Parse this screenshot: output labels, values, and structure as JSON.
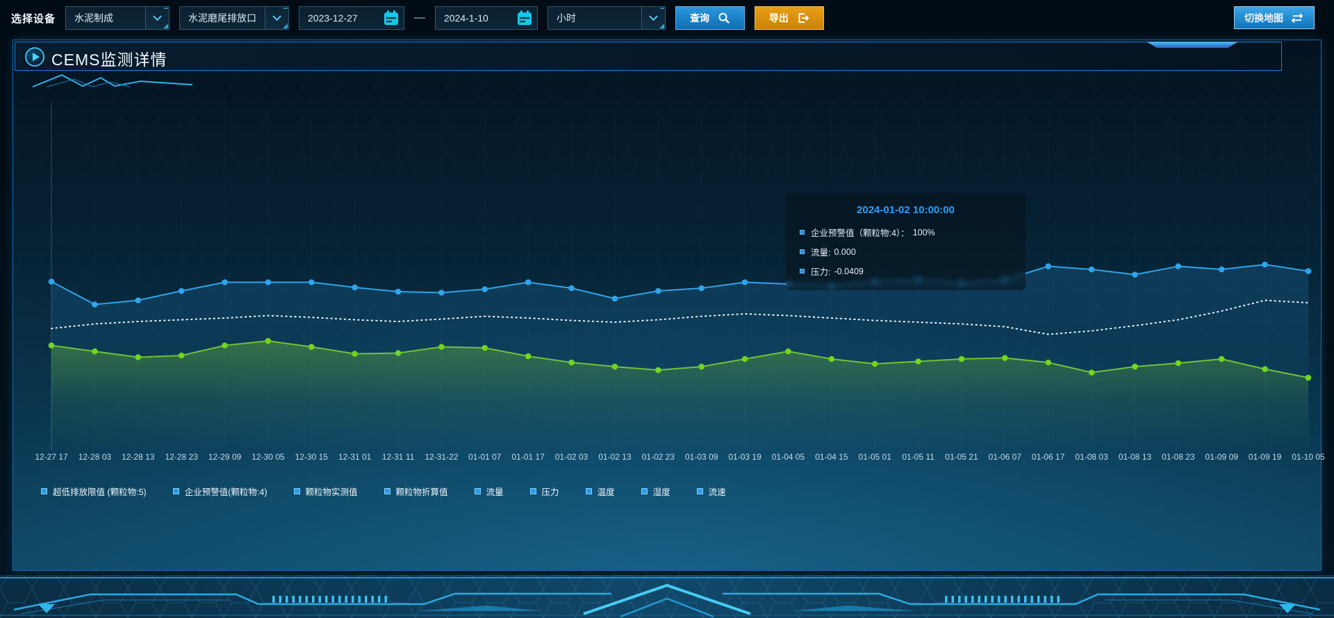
{
  "toolbar": {
    "device_label": "选择设备",
    "select_line": "水泥制成",
    "select_outlet": "水泥磨尾排放口",
    "date_start": "2023-12-27",
    "date_separator": "—",
    "date_end": "2024-1-10",
    "select_interval": "小时",
    "query_label": "查询",
    "export_label": "导出",
    "switch_map_label": "切换地图"
  },
  "panel": {
    "title": "CEMS监测详情"
  },
  "tooltip": {
    "title": "2024-01-02 10:00:00",
    "items": [
      {
        "label": "企业预警值（颗粒物:4）：",
        "value": "100%"
      },
      {
        "label": "流量:",
        "value": "0.000"
      },
      {
        "label": "压力:",
        "value": "-0.0409"
      }
    ]
  },
  "colors": {
    "accent_blue": "#2ea5ec",
    "accent_green": "#6fc436",
    "marker_green": "#72d61e",
    "dotted_white": "#e8f2f8",
    "legend_marker": "#2e9be2",
    "export_orange": "#e8a016",
    "calendar_cyan": "#14c8e9"
  },
  "chart_data": {
    "type": "line",
    "title": "",
    "xlabel": "",
    "ylabel": "",
    "y_axis_visible": false,
    "value_units": "percent of plot height (no y-axis shown in chart)",
    "ylim": [
      0,
      100
    ],
    "grid": "dotted",
    "legend_position": "bottom",
    "x": [
      "12-27 17",
      "12-28 03",
      "12-28 13",
      "12-28 23",
      "12-29 09",
      "12-30 05",
      "12-30 15",
      "12-31 01",
      "12-31 11",
      "12-31-22",
      "01-01 07",
      "01-01 17",
      "01-02 03",
      "01-02 13",
      "01-02 23",
      "01-03 09",
      "01-03 19",
      "01-04 05",
      "01-04 15",
      "01-05 01",
      "01-05 11",
      "01-05 21",
      "01-06 07",
      "01-06 17",
      "01-08 03",
      "01-08 13",
      "01-08 23",
      "01-09 09",
      "01-09 19",
      "01-10 05"
    ],
    "series": [
      {
        "name": "流量",
        "color": "#2ea5ec",
        "marker_color": "#2ea5ec",
        "markers": true,
        "dashed": false,
        "area": "blue",
        "values": [
          48.5,
          41.9,
          43.1,
          45.8,
          48.3,
          48.3,
          48.3,
          46.8,
          45.6,
          45.3,
          46.3,
          48.3,
          46.6,
          43.6,
          45.8,
          46.6,
          48.3,
          47.8,
          47.3,
          48.5,
          49,
          48,
          49,
          52.9,
          52,
          50.5,
          52.9,
          52,
          53.4,
          51.5
        ]
      },
      {
        "name": "企业预警值(颗粒物:4)",
        "color": "#e8f2f8",
        "marker_color": "#e8f2f8",
        "markers": false,
        "dashed": true,
        "area": null,
        "values": [
          35,
          36.3,
          37,
          37.5,
          38,
          38.7,
          38.2,
          37.5,
          37,
          37.7,
          38.5,
          38,
          37.3,
          36.8,
          37.5,
          38.5,
          39.2,
          38.7,
          38,
          37.3,
          36.8,
          36.3,
          35.5,
          33.3,
          34.3,
          35.8,
          37.5,
          40,
          43.1,
          42.4
        ]
      },
      {
        "name": "压力",
        "color": "#6fc436",
        "marker_color": "#72d61e",
        "markers": true,
        "dashed": false,
        "area": "green",
        "values": [
          30.1,
          28.4,
          26.7,
          27.2,
          30.1,
          31.4,
          29.7,
          27.7,
          27.9,
          29.7,
          29.4,
          27,
          25.2,
          24,
          23,
          24,
          26.2,
          28.4,
          26.2,
          24.8,
          25.5,
          26.2,
          26.5,
          25.2,
          22.3,
          24,
          25,
          26.2,
          23.3,
          20.8
        ]
      }
    ],
    "legend": [
      "超低排放限值 (颗粒物:5)",
      "企业预警值(颗粒物:4)",
      "颗粒物实测值",
      "颗粒物折算值",
      "流量",
      "压力",
      "温度",
      "湿度",
      "流速"
    ]
  }
}
